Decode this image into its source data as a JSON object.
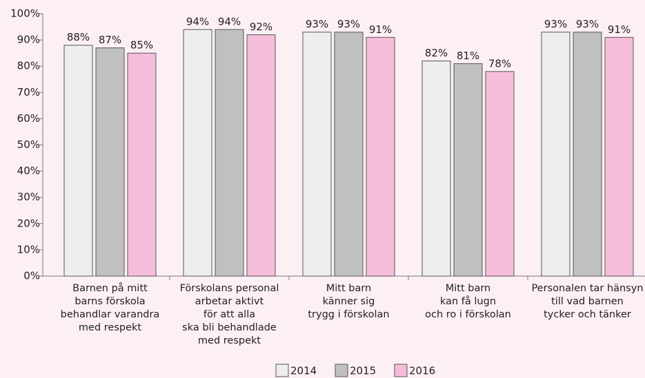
{
  "chart_data": {
    "type": "bar",
    "categories": [
      "Barnen på mitt\nbarns förskola\nbehandlar varandra\nmed respekt",
      "Förskolans personal\narbetar aktivt\nför att alla\nska bli behandlade\nmed respekt",
      "Mitt barn\nkänner sig\ntrygg i förskolan",
      "Mitt barn\nkan få lugn\noch ro i förskolan",
      "Personalen tar hänsyn\ntill vad barnen\ntycker och tänker"
    ],
    "series": [
      {
        "name": "2014",
        "color": "#eeeeee",
        "values": [
          88,
          94,
          93,
          82,
          93
        ],
        "value_labels": [
          "88%",
          "94%",
          "93%",
          "82%",
          "93%"
        ]
      },
      {
        "name": "2015",
        "color": "#c0c0c0",
        "values": [
          87,
          94,
          93,
          81,
          93
        ],
        "value_labels": [
          "87%",
          "94%",
          "93%",
          "81%",
          "93%"
        ]
      },
      {
        "name": "2016",
        "color": "#f6bdda",
        "values": [
          85,
          92,
          91,
          78,
          91
        ],
        "value_labels": [
          "85%",
          "92%",
          "91%",
          "78%",
          "91%"
        ]
      }
    ],
    "ylim": [
      0,
      100
    ],
    "yticks": [
      {
        "value": 0,
        "label": "0%"
      },
      {
        "value": 10,
        "label": "10%"
      },
      {
        "value": 20,
        "label": "20%"
      },
      {
        "value": 30,
        "label": "30%"
      },
      {
        "value": 40,
        "label": "40%"
      },
      {
        "value": 50,
        "label": "50%"
      },
      {
        "value": 60,
        "label": "60%"
      },
      {
        "value": 70,
        "label": "70%"
      },
      {
        "value": 80,
        "label": "80%"
      },
      {
        "value": 90,
        "label": "90%"
      },
      {
        "value": 100,
        "label": "100%"
      }
    ],
    "grid": false,
    "legend": "bottom"
  }
}
